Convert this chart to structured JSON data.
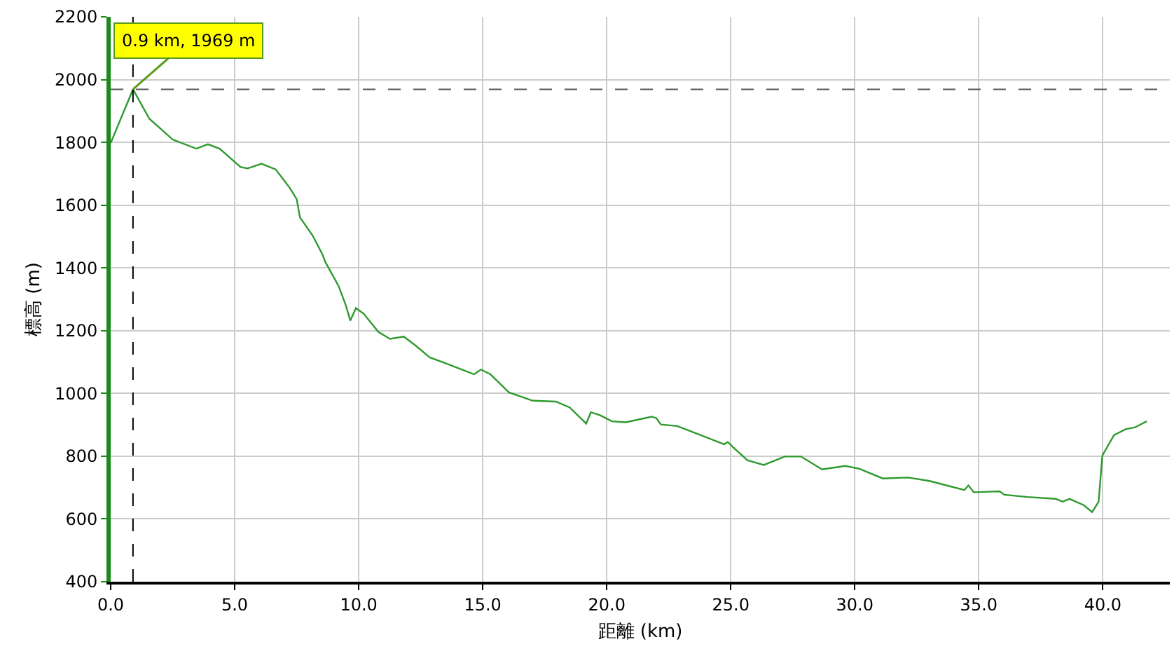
{
  "chart_data": {
    "type": "line",
    "xlabel": "距離 (km)",
    "ylabel": "標高 (m)",
    "x": [
      0,
      0.9,
      1.56,
      2.5,
      3.45,
      3.92,
      4.39,
      5.24,
      5.52,
      6.08,
      6.65,
      7.21,
      7.5,
      7.63,
      8.15,
      8.53,
      8.66,
      9.19,
      9.47,
      9.66,
      9.89,
      10.2,
      10.79,
      11.26,
      11.82,
      12.3,
      12.86,
      13.6,
      14.2,
      14.65,
      14.93,
      15.31,
      16.06,
      17.0,
      17.95,
      18.51,
      19.17,
      19.36,
      19.74,
      20.21,
      20.77,
      21.81,
      22.0,
      22.18,
      22.84,
      23.79,
      24.73,
      24.88,
      25.1,
      25.67,
      26.33,
      27.18,
      27.83,
      28.68,
      29.62,
      30.19,
      31.13,
      32.16,
      33.01,
      34.42,
      34.58,
      34.8,
      35.84,
      36.03,
      36.97,
      38.1,
      38.38,
      38.66,
      39.23,
      39.57,
      39.83,
      39.98,
      40.45,
      40.92,
      41.3,
      41.77
    ],
    "series": [
      {
        "color": "#2e9a2e",
        "values": [
          1798,
          1969,
          1875,
          1809,
          1780,
          1794,
          1780,
          1721,
          1717,
          1732,
          1714,
          1656,
          1619,
          1561,
          1502,
          1444,
          1418,
          1342,
          1283,
          1232,
          1272,
          1254,
          1196,
          1174,
          1181,
          1152,
          1115,
          1093,
          1075,
          1061,
          1076,
          1061,
          1003,
          977,
          974,
          955,
          904,
          940,
          930,
          911,
          908,
          926,
          921,
          901,
          896,
          867,
          838,
          845,
          828,
          787,
          772,
          799,
          799,
          758,
          769,
          760,
          729,
          732,
          721,
          692,
          707,
          685,
          688,
          677,
          670,
          664,
          655,
          664,
          644,
          622,
          655,
          802,
          867,
          886,
          892,
          911
        ]
      }
    ],
    "xlim": [
      0,
      42.7
    ],
    "xticks": [
      {
        "value": 0,
        "label": "0.0"
      },
      {
        "value": 5,
        "label": "5.0"
      },
      {
        "value": 10,
        "label": "10.0"
      },
      {
        "value": 15,
        "label": "15.0"
      },
      {
        "value": 20,
        "label": "20.0"
      },
      {
        "value": 25,
        "label": "25.0"
      },
      {
        "value": 30,
        "label": "30.0"
      },
      {
        "value": 35,
        "label": "35.0"
      },
      {
        "value": 40,
        "label": "40.0"
      }
    ],
    "ylim": [
      400,
      2200
    ],
    "yticks": [
      400,
      600,
      800,
      1000,
      1200,
      1400,
      1600,
      1800,
      2000,
      2200
    ],
    "grid": true,
    "marker": "none",
    "line_style": "solid",
    "ref_lines": [
      {
        "axis": "x",
        "value": 0.9,
        "color": "#000000",
        "line_style": "dashed"
      },
      {
        "axis": "y",
        "value": 1969,
        "color": "#555555",
        "line_style": "dashed"
      }
    ],
    "annotations": [
      {
        "text": "0.9 km, 1969 m",
        "x": 0.9,
        "y": 1969
      }
    ]
  }
}
